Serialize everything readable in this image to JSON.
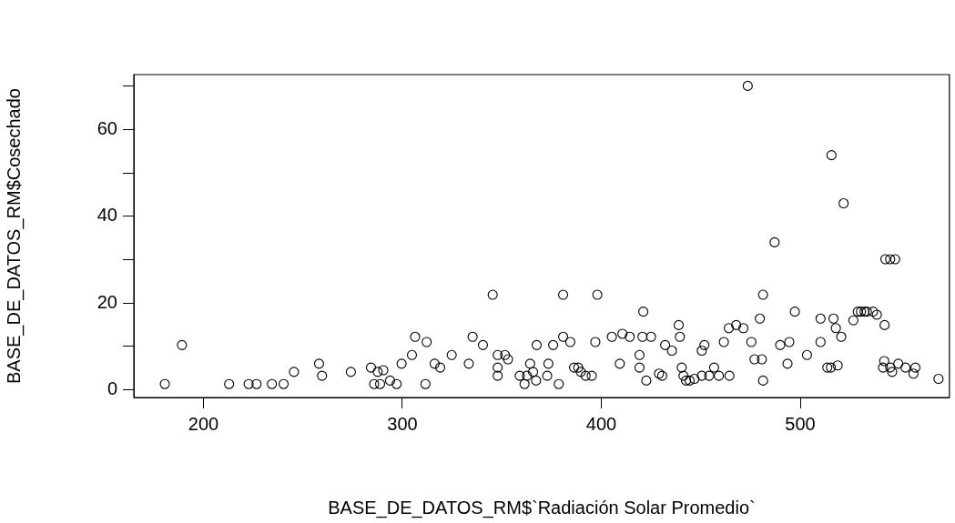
{
  "chart_data": {
    "type": "scatter",
    "xlabel": "BASE_DE_DATOS_RM$`Radiación Solar Promedio`",
    "ylabel": "BASE_DE_DATOS_RM$Cosechado",
    "x": [
      180.6,
      189.2,
      212.9,
      222.7,
      226.7,
      234.4,
      240.3,
      245.5,
      258.1,
      259.6,
      274.1,
      284.2,
      285.8,
      287.6,
      288.8,
      290.4,
      293.8,
      297.1,
      299.6,
      304.8,
      306.4,
      311.6,
      312.2,
      316.2,
      319.0,
      324.8,
      333.4,
      335.3,
      340.5,
      345.4,
      347.9,
      347.9,
      347.9,
      351.6,
      353.1,
      359.0,
      361.4,
      362.6,
      364.2,
      365.7,
      367.2,
      367.5,
      372.8,
      373.4,
      375.8,
      378.6,
      380.8,
      380.8,
      384.4,
      386.3,
      388.4,
      389.7,
      392.1,
      395.2,
      398.0,
      397.0,
      405.3,
      409.3,
      410.6,
      414.3,
      419.2,
      419.2,
      421.1,
      420.7,
      422.6,
      425.0,
      429.0,
      430.6,
      432.1,
      435.5,
      438.9,
      439.5,
      440.4,
      441.3,
      442.6,
      444.4,
      446.8,
      450.5,
      451.8,
      450.5,
      454.2,
      456.7,
      459.1,
      461.6,
      464.4,
      464.1,
      467.8,
      471.4,
      473.6,
      475.4,
      477.0,
      479.7,
      480.7,
      481.3,
      481.3,
      487.1,
      489.9,
      493.6,
      494.5,
      497.3,
      503.4,
      510.2,
      510.2,
      513.6,
      515.4,
      515.7,
      516.7,
      517.9,
      518.8,
      520.6,
      521.8,
      526.7,
      528.9,
      530.5,
      532.3,
      533.5,
      536.6,
      538.5,
      542.4,
      542.8,
      545.2,
      547.7,
      542.2,
      541.6,
      545.2,
      546.2,
      549.3,
      552.9,
      556.9,
      557.9,
      569.5
    ],
    "values": [
      1.3,
      10.3,
      1.3,
      1.3,
      1.3,
      1.3,
      1.3,
      4.1,
      6.0,
      3.2,
      4.1,
      5.1,
      1.3,
      4.1,
      1.3,
      4.5,
      2.1,
      1.3,
      6.0,
      8.0,
      12.2,
      1.3,
      11.0,
      6.0,
      5.1,
      8.0,
      6.0,
      12.2,
      10.3,
      21.9,
      8.0,
      5.1,
      3.2,
      8.0,
      7.0,
      3.2,
      1.3,
      3.2,
      6.0,
      4.1,
      2.1,
      10.3,
      3.2,
      6.0,
      10.3,
      1.3,
      21.9,
      12.2,
      11.0,
      5.1,
      5.1,
      4.1,
      3.2,
      3.2,
      21.9,
      11.0,
      12.2,
      6.0,
      12.9,
      12.2,
      8.0,
      5.1,
      18.0,
      12.2,
      2.1,
      12.2,
      3.7,
      3.2,
      10.3,
      9.0,
      14.9,
      12.2,
      5.1,
      3.2,
      2.1,
      2.1,
      2.5,
      9.0,
      10.3,
      3.2,
      3.2,
      5.1,
      3.2,
      11.0,
      3.2,
      14.2,
      14.9,
      14.2,
      70.1,
      11.0,
      7.0,
      16.4,
      7.0,
      21.9,
      2.1,
      34.0,
      10.3,
      6.0,
      11.0,
      18.0,
      8.0,
      16.4,
      11.0,
      5.1,
      5.1,
      54.1,
      16.4,
      14.2,
      5.6,
      12.2,
      43.0,
      16.0,
      18.0,
      18.0,
      18.0,
      18.0,
      18.0,
      17.3,
      14.9,
      30.1,
      30.1,
      30.1,
      6.6,
      5.1,
      5.1,
      4.1,
      6.0,
      5.1,
      3.7,
      5.1,
      2.5
    ],
    "color": "#000000",
    "marker": "circle",
    "grid": false,
    "xlim": [
      165,
      575
    ],
    "ylim": [
      -1.8,
      72.7
    ],
    "xticks": [
      200,
      300,
      400,
      500
    ],
    "yticks": [
      0,
      {
        "value": 10,
        "label": null
      },
      20,
      {
        "value": 30,
        "label": null
      },
      40,
      {
        "value": 50,
        "label": null
      },
      60,
      {
        "value": 70,
        "label": null
      }
    ]
  }
}
